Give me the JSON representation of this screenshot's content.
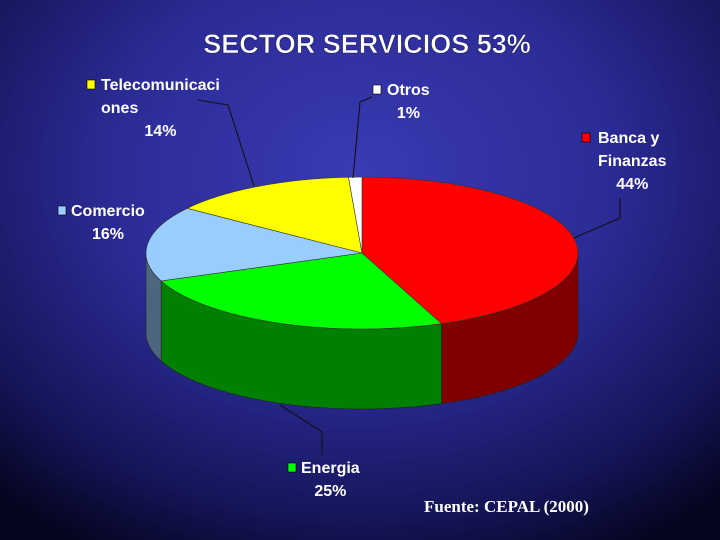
{
  "chart_data": {
    "type": "pie",
    "title": "SECTOR SERVICIOS 53%",
    "slices": [
      {
        "name": "Banca y Finanzas",
        "label_lines": [
          "Banca y",
          "Finanzas"
        ],
        "value": 44,
        "value_label": "44%",
        "color": "#ff0000"
      },
      {
        "name": "Energia",
        "label_lines": [
          "Energia"
        ],
        "value": 25,
        "value_label": "25%",
        "color": "#00ff00"
      },
      {
        "name": "Comercio",
        "label_lines": [
          "Comercio"
        ],
        "value": 16,
        "value_label": "16%",
        "color": "#99ccff"
      },
      {
        "name": "Telecomunicaciones",
        "label_lines": [
          "Telecomunicaci",
          "ones"
        ],
        "value": 14,
        "value_label": "14%",
        "color": "#ffff00"
      },
      {
        "name": "Otros",
        "label_lines": [
          "Otros"
        ],
        "value": 1,
        "value_label": "1%",
        "color": "#ffffff"
      }
    ]
  },
  "source": "Fuente: CEPAL (2000)"
}
